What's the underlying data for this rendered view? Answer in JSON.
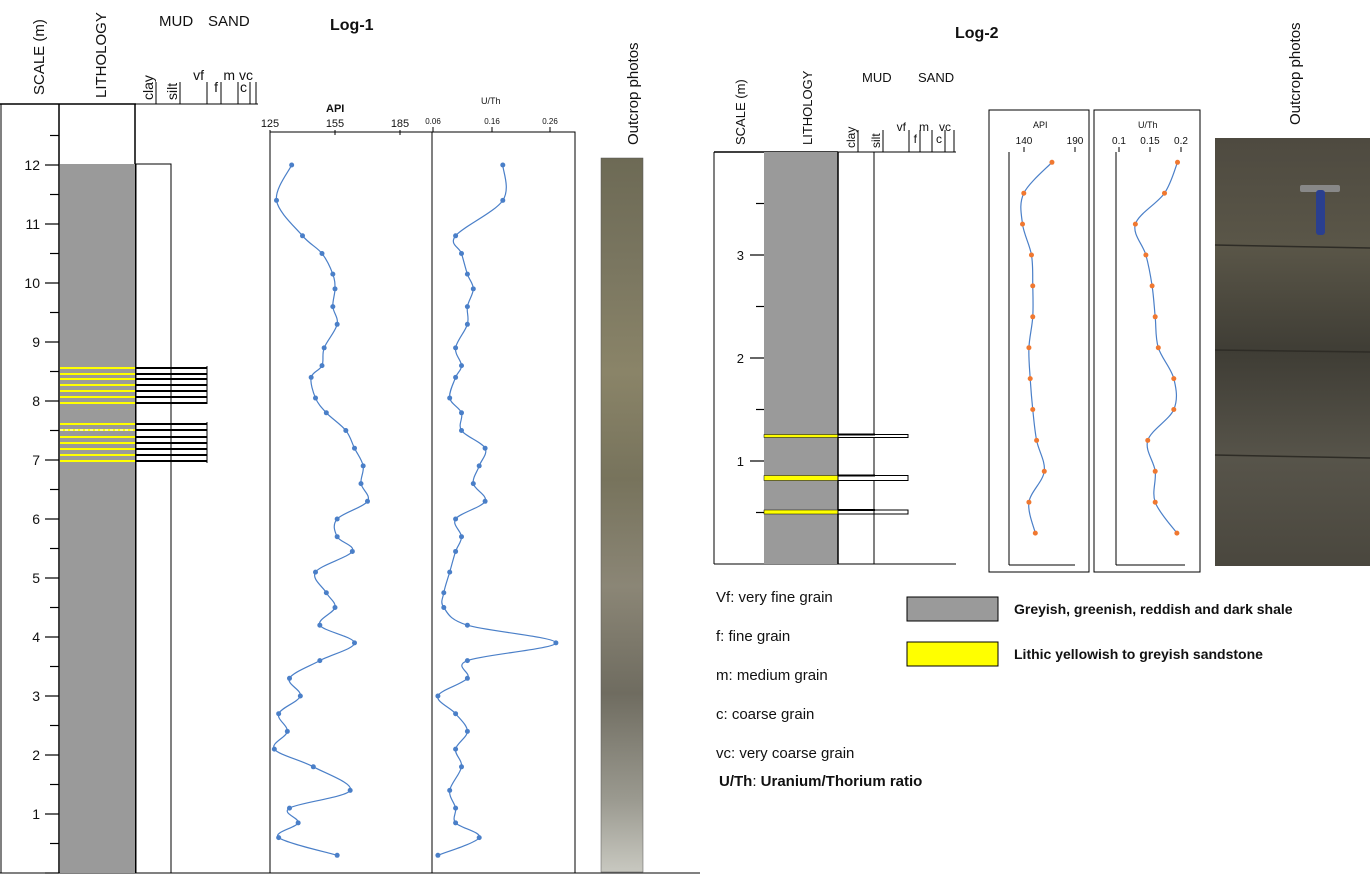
{
  "log1": {
    "title": "Log-1",
    "scale_label": "SCALE (m)",
    "lithology_label": "LITHOLOGY",
    "mud_label": "MUD",
    "sand_label": "SAND",
    "grain_labels": [
      "clay",
      "silt",
      "vf",
      "f",
      "m",
      "c",
      "vc"
    ],
    "scale_ticks": [
      "1",
      "2",
      "3",
      "4",
      "5",
      "6",
      "7",
      "8",
      "9",
      "10",
      "11",
      "12"
    ],
    "outcrop_label": "Outcrop photos",
    "api_label": "API",
    "api_ticks": [
      "125",
      "155",
      "185"
    ],
    "uth_label": "U/Th",
    "uth_ticks": [
      "0.06",
      "0.16",
      "0.26"
    ]
  },
  "log2": {
    "title": "Log-2",
    "scale_label": "SCALE (m)",
    "lithology_label": "LITHOLOGY",
    "mud_label": "MUD",
    "sand_label": "SAND",
    "grain_labels": [
      "clay",
      "silt",
      "vf",
      "f",
      "m",
      "c",
      "vc"
    ],
    "scale_ticks": [
      "1",
      "2",
      "3"
    ],
    "outcrop_label": "Outcrop photos",
    "api_label": "API",
    "api_ticks": [
      "140",
      "190"
    ],
    "uth_label": "U/Th",
    "uth_ticks": [
      "0.1",
      "0.15",
      "0.2"
    ]
  },
  "abbreviations": [
    {
      "key": "Vf",
      "text": "very fine grain"
    },
    {
      "key": "f",
      "text": "fine grain"
    },
    {
      "key": "m",
      "text": "medium grain"
    },
    {
      "key": "c",
      "text": "coarse grain"
    },
    {
      "key": "vc",
      "text": "very coarse grain"
    },
    {
      "key": "U/Th",
      "text": "Uranium/Thorium ratio"
    }
  ],
  "legend": [
    {
      "label": "Greyish, greenish, reddish and dark shale",
      "color": "#9a9a9a"
    },
    {
      "label": "Lithic yellowish to greyish sandstone",
      "color": "#ffff00"
    }
  ],
  "colors": {
    "shale": "#9a9a9a",
    "sandstone": "#ffff00",
    "curve": "#4a7fc8",
    "marker_log1": "#4a7fc8",
    "marker_log2": "#f07830"
  },
  "chart_data": [
    {
      "type": "line",
      "name": "Log-1 API",
      "x_label": "API",
      "y_label": "SCALE (m)",
      "xlim": [
        125,
        185
      ],
      "ylim": [
        0,
        12
      ],
      "depth": [
        0.3,
        0.6,
        0.85,
        1.1,
        1.4,
        1.8,
        2.1,
        2.4,
        2.7,
        3.0,
        3.3,
        3.6,
        3.9,
        4.2,
        4.5,
        4.75,
        5.1,
        5.45,
        5.7,
        6.0,
        6.3,
        6.6,
        6.9,
        7.2,
        7.5,
        7.8,
        8.05,
        8.4,
        8.6,
        8.9,
        9.3,
        9.6,
        9.9,
        10.15,
        10.5,
        10.8,
        11.4,
        12.0
      ],
      "api": [
        156,
        129,
        138,
        134,
        162,
        145,
        127,
        133,
        129,
        139,
        134,
        148,
        164,
        148,
        155,
        151,
        146,
        163,
        156,
        156,
        170,
        167,
        168,
        164,
        160,
        151,
        146,
        144,
        149,
        150,
        156,
        154,
        155,
        154,
        149,
        140,
        128,
        135
      ]
    },
    {
      "type": "line",
      "name": "Log-1 U/Th",
      "x_label": "U/Th",
      "y_label": "SCALE (m)",
      "xlim": [
        0.06,
        0.26
      ],
      "ylim": [
        0,
        12
      ],
      "depth": [
        0.3,
        0.6,
        0.85,
        1.1,
        1.4,
        1.8,
        2.1,
        2.4,
        2.7,
        3.0,
        3.3,
        3.6,
        3.9,
        4.2,
        4.5,
        4.75,
        5.1,
        5.45,
        5.7,
        6.0,
        6.3,
        6.6,
        6.9,
        7.2,
        7.5,
        7.8,
        8.05,
        8.4,
        8.6,
        8.9,
        9.3,
        9.6,
        9.9,
        10.15,
        10.5,
        10.8,
        11.4,
        12.0
      ],
      "uth": [
        0.07,
        0.14,
        0.1,
        0.1,
        0.09,
        0.11,
        0.1,
        0.12,
        0.1,
        0.07,
        0.12,
        0.12,
        0.27,
        0.12,
        0.08,
        0.08,
        0.09,
        0.1,
        0.11,
        0.1,
        0.15,
        0.13,
        0.14,
        0.15,
        0.11,
        0.11,
        0.09,
        0.1,
        0.11,
        0.1,
        0.12,
        0.12,
        0.13,
        0.12,
        0.11,
        0.1,
        0.18,
        0.18
      ]
    },
    {
      "type": "line",
      "name": "Log-2 API",
      "x_label": "API",
      "y_label": "SCALE (m)",
      "xlim": [
        140,
        190
      ],
      "ylim": [
        0,
        3.5
      ],
      "depth": [
        0.3,
        0.6,
        0.9,
        1.2,
        1.5,
        1.8,
        2.1,
        2.4,
        2.7,
        3.0,
        3.3,
        3.6,
        3.9
      ],
      "api": [
        159,
        154,
        166,
        160,
        157,
        155,
        154,
        157,
        157,
        156,
        149,
        150,
        172
      ]
    },
    {
      "type": "line",
      "name": "Log-2 U/Th",
      "x_label": "U/Th",
      "y_label": "SCALE (m)",
      "xlim": [
        0.1,
        0.2
      ],
      "ylim": [
        0,
        3.5
      ],
      "depth": [
        0.3,
        0.6,
        0.9,
        1.2,
        1.5,
        1.8,
        2.1,
        2.4,
        2.7,
        3.0,
        3.3,
        3.6,
        3.9
      ],
      "uth": [
        0.195,
        0.16,
        0.16,
        0.148,
        0.19,
        0.19,
        0.165,
        0.16,
        0.155,
        0.145,
        0.128,
        0.175,
        0.196
      ]
    }
  ]
}
